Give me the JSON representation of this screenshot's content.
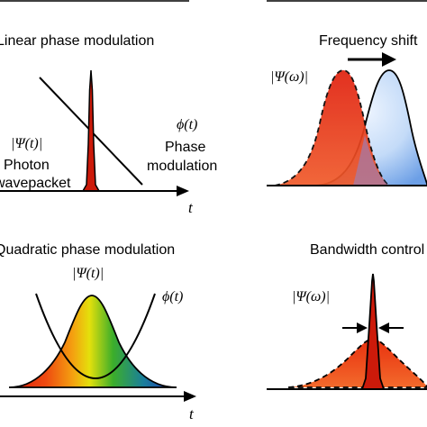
{
  "panels": {
    "linear": {
      "title": "Linear phase modulation",
      "psi_label": "|Ψ(t)|",
      "photon_label_1": "Photon",
      "photon_label_2": "wavepacket",
      "phi_label": "ϕ(t)",
      "phase_label_1": "Phase",
      "phase_label_2": "modulation",
      "axis_label": "t"
    },
    "freq_shift": {
      "title": "Frequency shift",
      "psi_label": "|Ψ(ω)|"
    },
    "quadratic": {
      "title": "Quadratic phase modulation",
      "psi_label": "|Ψ(t)|",
      "phi_label": "ϕ(t)",
      "axis_label": "t"
    },
    "bandwidth": {
      "title": "Bandwidth control",
      "psi_label": "|Ψ(ω)|"
    }
  },
  "colors": {
    "red_pulse": "#cc1a0a",
    "orange_red": "#ee3a14",
    "blue_light": "#cfe2fb",
    "blue_mid": "#7fb0ee",
    "spectrum": [
      "#dd1a0c",
      "#ee5a10",
      "#f4a810",
      "#e6e00a",
      "#3aae2a",
      "#1a8a8a",
      "#2233bb"
    ]
  }
}
